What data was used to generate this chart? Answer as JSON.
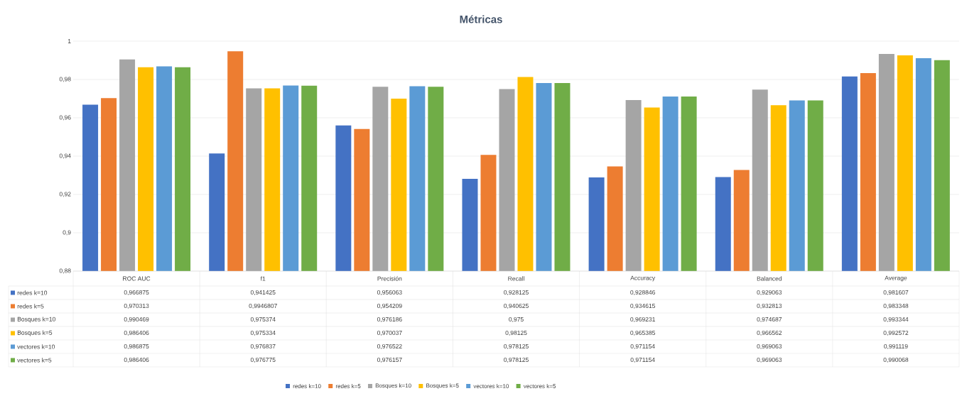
{
  "chart_data": {
    "type": "bar",
    "title": "Métricas",
    "categories": [
      "ROC AUC",
      "f1",
      "Precisión",
      "Recall",
      "Accuracy",
      "Balanced",
      "Average"
    ],
    "series": [
      {
        "name": "redes k=10",
        "color": "#4472c4",
        "values": [
          0.966875,
          0.941425,
          0.956063,
          0.928125,
          0.928846,
          0.929063,
          0.981607
        ],
        "value_labels": [
          "0,966875",
          "0,941425",
          "0,956063",
          "0,928125",
          "0,928846",
          "0,929063",
          "0,981607"
        ]
      },
      {
        "name": "redes k=5",
        "color": "#ed7d31",
        "values": [
          0.970313,
          0.9946807,
          0.954209,
          0.940625,
          0.934615,
          0.932813,
          0.983348
        ],
        "value_labels": [
          "0,970313",
          "0,9946807",
          "0,954209",
          "0,940625",
          "0,934615",
          "0,932813",
          "0,983348"
        ]
      },
      {
        "name": "Bosques k=10",
        "color": "#a5a5a5",
        "values": [
          0.990469,
          0.975374,
          0.976186,
          0.975,
          0.969231,
          0.974687,
          0.993344
        ],
        "value_labels": [
          "0,990469",
          "0,975374",
          "0,976186",
          "0,975",
          "0,969231",
          "0,974687",
          "0,993344"
        ]
      },
      {
        "name": "Bosques k=5",
        "color": "#ffc000",
        "values": [
          0.986406,
          0.975334,
          0.970037,
          0.98125,
          0.965385,
          0.966562,
          0.992572
        ],
        "value_labels": [
          "0,986406",
          "0,975334",
          "0,970037",
          "0,98125",
          "0,965385",
          "0,966562",
          "0,992572"
        ]
      },
      {
        "name": "vectores k=10",
        "color": "#5b9bd5",
        "values": [
          0.986875,
          0.976837,
          0.976522,
          0.978125,
          0.971154,
          0.969063,
          0.991119
        ],
        "value_labels": [
          "0,986875",
          "0,976837",
          "0,976522",
          "0,978125",
          "0,971154",
          "0,969063",
          "0,991119"
        ]
      },
      {
        "name": "vectores k=5",
        "color": "#70ad47",
        "values": [
          0.986406,
          0.976775,
          0.976157,
          0.978125,
          0.971154,
          0.969063,
          0.990068
        ],
        "value_labels": [
          "0,986406",
          "0,976775",
          "0,976157",
          "0,978125",
          "0,971154",
          "0,969063",
          "0,990068"
        ]
      }
    ],
    "ylim": [
      0.88,
      1
    ],
    "yticks": [
      {
        "value": 0.88,
        "label": "0,88"
      },
      {
        "value": 0.9,
        "label": "0,9"
      },
      {
        "value": 0.92,
        "label": "0,92"
      },
      {
        "value": 0.94,
        "label": "0,94"
      },
      {
        "value": 0.96,
        "label": "0,96"
      },
      {
        "value": 0.98,
        "label": "0,98"
      },
      {
        "value": 1,
        "label": "1"
      }
    ],
    "grid": "y",
    "legend": "bottom"
  }
}
